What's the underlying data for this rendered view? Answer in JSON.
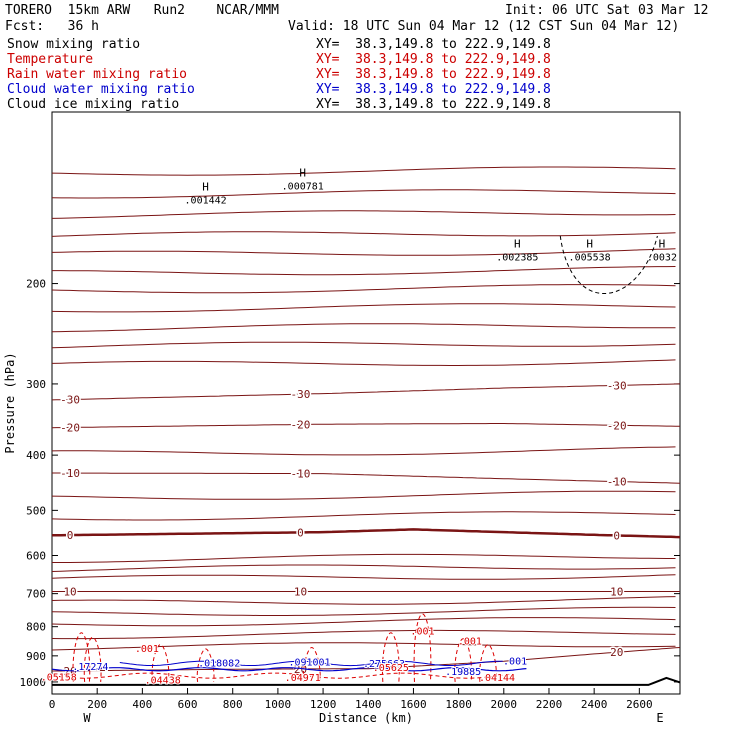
{
  "header": {
    "model": "TORERO  15km ARW   Run2    NCAR/MMM",
    "init": "Init: 06 UTC Sat 03 Mar 12",
    "fcst": "Fcst:   36 h",
    "valid": "Valid: 18 UTC Sun 04 Mar 12 (12 CST Sun 04 Mar 12)",
    "fields": [
      {
        "name": "Snow mixing ratio",
        "xy": "XY=  38.3,149.8 to 222.9,149.8",
        "color": "#000000"
      },
      {
        "name": "Temperature",
        "xy": "XY=  38.3,149.8 to 222.9,149.8",
        "color": "#cc0000"
      },
      {
        "name": "Rain water mixing ratio",
        "xy": "XY=  38.3,149.8 to 222.9,149.8",
        "color": "#cc0000"
      },
      {
        "name": "Cloud water mixing ratio",
        "xy": "XY=  38.3,149.8 to 222.9,149.8",
        "color": "#0000cc"
      },
      {
        "name": "Cloud ice mixing ratio",
        "xy": "XY=  38.3,149.8 to 222.9,149.8",
        "color": "#000000"
      }
    ]
  },
  "chart_data": {
    "type": "line",
    "xlabel": "Distance (km)",
    "ylabel": "Pressure (hPa)",
    "xlim": [
      0,
      2780
    ],
    "ylim": [
      1050,
      100
    ],
    "y_scale": "log",
    "x_ticks": [
      0,
      200,
      400,
      600,
      800,
      1000,
      1200,
      1400,
      1600,
      1800,
      2000,
      2200,
      2400,
      2600
    ],
    "y_ticks": [
      200,
      300,
      400,
      500,
      600,
      700,
      800,
      900,
      1000
    ],
    "x_end_labels": {
      "left": "W",
      "right": "E"
    },
    "temperature_isotherms": [
      {
        "temp": -30,
        "label": "-30",
        "pressure_at": [
          [
            0,
            320
          ],
          [
            1200,
            312
          ],
          [
            2000,
            305
          ],
          [
            2780,
            300
          ]
        ]
      },
      {
        "temp": -20,
        "label": "-20",
        "pressure_at": [
          [
            0,
            358
          ],
          [
            1200,
            353
          ],
          [
            2000,
            352
          ],
          [
            2780,
            356
          ]
        ]
      },
      {
        "temp": -10,
        "label": "-10",
        "pressure_at": [
          [
            0,
            430
          ],
          [
            1200,
            431
          ],
          [
            2000,
            440
          ],
          [
            2780,
            448
          ]
        ]
      },
      {
        "temp": 0,
        "label": "0",
        "pressure_at": [
          [
            0,
            553
          ],
          [
            1200,
            546
          ],
          [
            1600,
            540
          ],
          [
            2400,
            552
          ],
          [
            2780,
            557
          ]
        ]
      },
      {
        "temp": 10,
        "label": "10",
        "pressure_at": [
          [
            0,
            694
          ],
          [
            1200,
            694
          ],
          [
            2000,
            694
          ],
          [
            2780,
            694
          ]
        ]
      },
      {
        "temp": 20,
        "label": "20",
        "pressure_at": [
          [
            0,
            957
          ],
          [
            800,
            950
          ],
          [
            1400,
            948
          ],
          [
            2000,
            920
          ],
          [
            2400,
            893
          ],
          [
            2780,
            870
          ]
        ]
      }
    ],
    "snow_highs": [
      {
        "x": 680,
        "p": 143,
        "label": ".001442"
      },
      {
        "x": 1110,
        "p": 135,
        "label": ".000781"
      },
      {
        "x": 2060,
        "p": 180,
        "label": ".002385"
      },
      {
        "x": 2380,
        "p": 180,
        "label": ".005538"
      },
      {
        "x": 2700,
        "p": 180,
        "label": ".0032"
      }
    ],
    "cloud_water_labels": [
      {
        "x": 170,
        "p": 942,
        "label": ".17274"
      },
      {
        "x": 740,
        "p": 928,
        "label": ".018082"
      },
      {
        "x": 1140,
        "p": 925,
        "label": ".091001"
      },
      {
        "x": 1470,
        "p": 930,
        "label": ".275663"
      },
      {
        "x": 1820,
        "p": 960,
        "label": ".19885"
      },
      {
        "x": 2050,
        "p": 920,
        "label": ".001"
      }
    ],
    "rain_labels": [
      {
        "x": 30,
        "p": 982,
        "label": ".05158"
      },
      {
        "x": 490,
        "p": 995,
        "label": ".04438"
      },
      {
        "x": 1110,
        "p": 985,
        "label": ".04971"
      },
      {
        "x": 1500,
        "p": 945,
        "label": ".05625"
      },
      {
        "x": 1970,
        "p": 985,
        "label": ".04144"
      },
      {
        "x": 420,
        "p": 875,
        "label": ".001"
      },
      {
        "x": 1640,
        "p": 815,
        "label": ".001"
      },
      {
        "x": 1850,
        "p": 850,
        "label": ".001"
      }
    ]
  }
}
